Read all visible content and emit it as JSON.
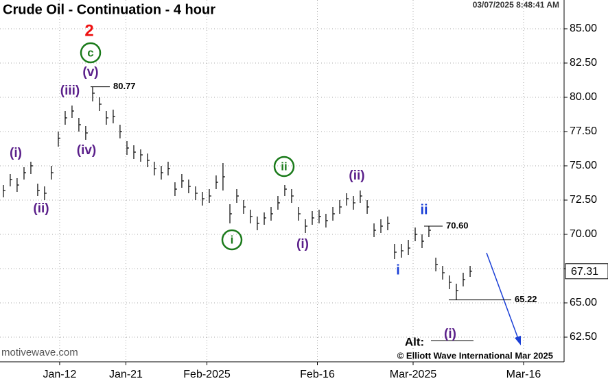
{
  "chart_data": {
    "type": "ohlc",
    "title": "Crude Oil - Continuation - 4 hour",
    "timestamp": "03/07/2025 8:48:41 AM",
    "watermark": "motivewave.com",
    "copyright": "© Elliott Wave International Mar 2025",
    "x": [
      4.36,
      5.29,
      6.22,
      7.16,
      8.09,
      9.02,
      9.95,
      10.88,
      11.82,
      12.75,
      13.68,
      14.61,
      15.54,
      16.48,
      17.41,
      18.34,
      19.27,
      20.2,
      21.14,
      22.07,
      23.0,
      23.93,
      24.86,
      25.8,
      26.73,
      27.66,
      28.59,
      29.52,
      30.46,
      31.39,
      32.32,
      33.25,
      34.18,
      35.12,
      36.05,
      36.98,
      37.91,
      38.84,
      39.78,
      40.71,
      41.64,
      42.57,
      43.5,
      44.44,
      45.37,
      46.3,
      47.23,
      48.16,
      49.1,
      50.03,
      50.96,
      51.89,
      52.82,
      53.76,
      54.69,
      55.62,
      56.55,
      57.48,
      58.42,
      59.35,
      60.28,
      61.21,
      62.14,
      63.08,
      64.01,
      64.94,
      65.87,
      66.8,
      67.74
    ],
    "high": [
      73.6,
      74.4,
      74.1,
      74.9,
      75.3,
      73.7,
      73.5,
      75.0,
      77.5,
      79.0,
      79.4,
      78.5,
      77.9,
      80.77,
      80.0,
      79.0,
      79.1,
      78.0,
      76.8,
      76.5,
      76.2,
      75.9,
      75.3,
      75.0,
      75.3,
      73.8,
      74.4,
      74.0,
      73.5,
      73.1,
      73.3,
      74.3,
      75.2,
      72.2,
      73.3,
      72.5,
      71.8,
      71.3,
      71.6,
      72.0,
      72.8,
      73.6,
      73.3,
      72.0,
      71.1,
      71.7,
      71.8,
      71.5,
      72.0,
      72.5,
      73.0,
      72.8,
      73.2,
      72.5,
      70.8,
      71.1,
      71.3,
      69.3,
      69.3,
      69.6,
      70.5,
      70.0,
      70.6,
      68.3,
      67.7,
      67.0,
      66.4,
      67.2,
      67.7
    ],
    "low": [
      72.7,
      73.5,
      73.1,
      74.0,
      74.4,
      72.8,
      72.5,
      74.0,
      76.4,
      78.0,
      78.5,
      77.5,
      76.9,
      79.7,
      79.0,
      78.0,
      78.1,
      77.0,
      75.8,
      75.5,
      75.3,
      74.9,
      74.3,
      74.0,
      74.3,
      72.8,
      73.4,
      73.0,
      72.5,
      72.1,
      72.3,
      73.3,
      73.2,
      70.8,
      72.3,
      71.5,
      70.8,
      70.3,
      70.7,
      71.0,
      71.8,
      72.8,
      72.3,
      71.0,
      70.1,
      70.7,
      70.8,
      70.5,
      71.0,
      71.5,
      72.1,
      71.8,
      72.3,
      71.5,
      69.8,
      70.1,
      70.3,
      68.2,
      68.3,
      68.5,
      69.5,
      69.0,
      69.8,
      67.3,
      66.7,
      66.0,
      65.22,
      66.2,
      66.9
    ],
    "close": [
      73.2,
      74.0,
      73.6,
      74.5,
      75.0,
      73.2,
      73.0,
      74.5,
      77.0,
      78.5,
      79.0,
      78.0,
      77.4,
      80.3,
      79.5,
      78.5,
      78.6,
      77.5,
      76.3,
      76.0,
      75.8,
      75.4,
      74.8,
      74.5,
      74.8,
      73.3,
      73.9,
      73.5,
      73.0,
      72.6,
      72.8,
      73.8,
      74.2,
      71.5,
      72.8,
      72.0,
      71.3,
      70.8,
      71.2,
      71.5,
      72.3,
      73.3,
      72.8,
      71.5,
      70.6,
      71.2,
      71.3,
      71.0,
      71.5,
      72.0,
      72.6,
      72.3,
      72.8,
      72.0,
      70.3,
      70.6,
      70.8,
      68.7,
      68.8,
      69.0,
      70.0,
      69.5,
      70.3,
      67.8,
      67.2,
      66.5,
      65.9,
      66.7,
      67.31
    ],
    "color": "#000000",
    "xlim": [
      3.9,
      80.5
    ],
    "xticks": [
      {
        "value": 12,
        "label": "Jan-12"
      },
      {
        "value": 21,
        "label": "Jan-21"
      },
      {
        "value": 32,
        "label": "Feb-2025"
      },
      {
        "value": 47,
        "label": "Feb-16"
      },
      {
        "value": 60,
        "label": "Mar-2025"
      },
      {
        "value": 75,
        "label": "Mar-16"
      }
    ],
    "ylim": [
      60.7,
      87.1
    ],
    "yticks": [
      {
        "value": 62.5,
        "label": "62.50"
      },
      {
        "value": 65,
        "label": "65.00"
      },
      {
        "value": 67.5,
        "label": "67.50"
      },
      {
        "value": 70,
        "label": "70.00"
      },
      {
        "value": 72.5,
        "label": "72.50"
      },
      {
        "value": 75,
        "label": "75.00"
      },
      {
        "value": 77.5,
        "label": "77.50"
      },
      {
        "value": 80,
        "label": "80.00"
      },
      {
        "value": 82.5,
        "label": "82.50"
      },
      {
        "value": 85,
        "label": "85.00"
      }
    ],
    "grid": true,
    "price_levels": {
      "values": [
        80.77,
        70.6,
        65.22
      ],
      "value_labels": [
        "80.77",
        "70.60",
        "65.22"
      ]
    },
    "annotations": [
      {
        "text": "2",
        "color": "#ee1111"
      },
      {
        "text": "c",
        "color": "#1a7a1a",
        "circled": true
      },
      {
        "text": "(v)",
        "color": "#5a1f8a"
      },
      {
        "text": "(iii)",
        "color": "#5a1f8a"
      },
      {
        "text": "(iv)",
        "color": "#5a1f8a"
      },
      {
        "text": "(i)",
        "color": "#5a1f8a"
      },
      {
        "text": "(ii)",
        "color": "#5a1f8a"
      },
      {
        "text": "i",
        "color": "#1a7a1a",
        "circled": true
      },
      {
        "text": "ii",
        "color": "#1a7a1a",
        "circled": true
      },
      {
        "text": "(i)",
        "color": "#5a1f8a"
      },
      {
        "text": "(ii)",
        "color": "#5a1f8a"
      },
      {
        "text": "ii",
        "color": "#1a3fd6"
      },
      {
        "text": "i",
        "color": "#1a3fd6"
      },
      {
        "text": "(i)",
        "color": "#5a1f8a"
      },
      {
        "text": "Alt:",
        "color": "#000000"
      }
    ]
  }
}
